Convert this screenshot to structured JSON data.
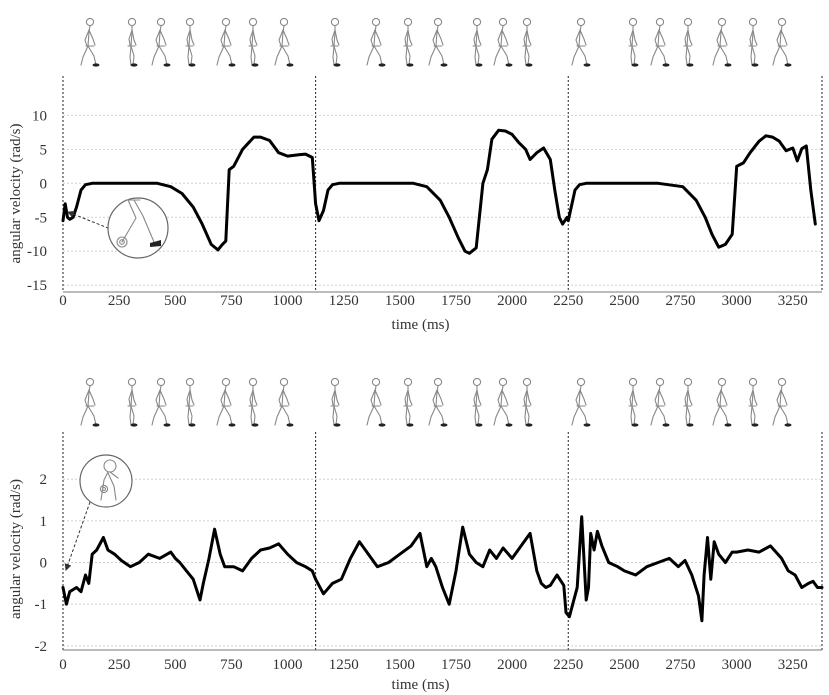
{
  "chart_data": [
    {
      "type": "line",
      "xlabel": "time (ms)",
      "ylabel": "angular velocity (rad/s)",
      "xlim": [
        0,
        3380
      ],
      "ylim": [
        -16,
        13
      ],
      "xticks": [
        0,
        250,
        500,
        750,
        1000,
        1250,
        1500,
        1750,
        2000,
        2250,
        2500,
        2750,
        3000,
        3250
      ],
      "yticks": [
        -15,
        -10,
        -5,
        0,
        5,
        10
      ],
      "gridlines_y": [
        -15,
        -10,
        -5,
        0,
        5,
        10
      ],
      "cycle_boundaries": [
        1125,
        2250
      ],
      "inset": "lower-left, shank (lower leg) sensor",
      "series": [
        {
          "x": [
            0,
            10,
            20,
            30,
            45,
            60,
            80,
            100,
            130,
            170,
            250,
            350,
            420,
            480,
            530,
            580,
            620,
            660,
            690,
            710,
            725,
            740,
            760,
            800,
            850,
            880,
            920,
            960,
            1000,
            1050,
            1080,
            1110,
            1125,
            1140,
            1160,
            1180,
            1200,
            1230,
            1270,
            1400,
            1500,
            1560,
            1620,
            1680,
            1720,
            1760,
            1790,
            1810,
            1840,
            1870,
            1890,
            1910,
            1940,
            1970,
            2000,
            2030,
            2060,
            2080,
            2110,
            2140,
            2170,
            2190,
            2210,
            2225,
            2245,
            2250,
            2260,
            2280,
            2300,
            2330,
            2400,
            2500,
            2650,
            2760,
            2820,
            2860,
            2890,
            2920,
            2950,
            2980,
            3000,
            3030,
            3060,
            3100,
            3130,
            3160,
            3190,
            3220,
            3250,
            3270,
            3290,
            3310,
            3330,
            3350
          ],
          "y": [
            -5.5,
            -3,
            -5,
            -5.3,
            -5,
            -3.5,
            -1,
            -0.2,
            0,
            0,
            0,
            0,
            0,
            -0.5,
            -1.5,
            -3.5,
            -6,
            -9,
            -9.8,
            -9,
            -8.5,
            2,
            2.5,
            5,
            6.8,
            6.8,
            6.3,
            4.5,
            4,
            4.2,
            4.3,
            3.8,
            -3,
            -5.5,
            -4,
            -1,
            -0.2,
            0,
            0,
            0,
            0,
            0,
            -0.5,
            -2.5,
            -5,
            -8,
            -10,
            -10.3,
            -9.5,
            0,
            2,
            6.5,
            7.8,
            7.7,
            7.2,
            6,
            5,
            3.5,
            4.5,
            5.2,
            3.5,
            -1,
            -5,
            -6,
            -5,
            -5.5,
            -4,
            -1,
            -0.2,
            0,
            0,
            0,
            0,
            -0.5,
            -2.5,
            -5,
            -7.5,
            -9.4,
            -9,
            -7.5,
            2.5,
            3,
            4.5,
            6.2,
            7,
            6.8,
            6.2,
            4.8,
            5.2,
            3.3,
            5.1,
            5.5,
            -1,
            -6
          ]
        }
      ]
    },
    {
      "type": "line",
      "xlabel": "time (ms)",
      "ylabel": "angular velocity (rad/s)",
      "xlim": [
        0,
        3380
      ],
      "ylim": [
        -2.1,
        2.75
      ],
      "xticks": [
        0,
        250,
        500,
        750,
        1000,
        1250,
        1500,
        1750,
        2000,
        2250,
        2500,
        2750,
        3000,
        3250
      ],
      "yticks": [
        -2,
        -1,
        0,
        1,
        2
      ],
      "gridlines_y": [
        -2,
        -1,
        0,
        1,
        2
      ],
      "cycle_boundaries": [
        1125,
        2250
      ],
      "inset": "upper-left, pelvis/lower-back sensor",
      "series": [
        {
          "x": [
            0,
            15,
            30,
            45,
            60,
            80,
            100,
            115,
            130,
            150,
            180,
            200,
            230,
            260,
            300,
            340,
            380,
            430,
            480,
            500,
            520,
            550,
            580,
            610,
            625,
            650,
            675,
            700,
            720,
            760,
            800,
            840,
            880,
            920,
            960,
            1000,
            1040,
            1080,
            1110,
            1125,
            1160,
            1200,
            1240,
            1280,
            1320,
            1360,
            1400,
            1450,
            1500,
            1550,
            1590,
            1620,
            1640,
            1660,
            1690,
            1720,
            1750,
            1780,
            1810,
            1840,
            1870,
            1900,
            1930,
            1960,
            2000,
            2040,
            2080,
            2110,
            2130,
            2150,
            2170,
            2200,
            2230,
            2240,
            2255,
            2270,
            2290,
            2310,
            2330,
            2340,
            2350,
            2365,
            2380,
            2400,
            2430,
            2470,
            2500,
            2550,
            2600,
            2650,
            2700,
            2740,
            2770,
            2800,
            2830,
            2845,
            2855,
            2870,
            2885,
            2900,
            2920,
            2950,
            2980,
            3000,
            3050,
            3100,
            3150,
            3200,
            3230,
            3260,
            3290,
            3320,
            3340,
            3360,
            3380
          ],
          "y": [
            -0.6,
            -1,
            -0.7,
            -0.65,
            -0.6,
            -0.7,
            -0.3,
            -0.5,
            0.2,
            0.3,
            0.6,
            0.3,
            0.2,
            0.05,
            -0.1,
            0,
            0.2,
            0.1,
            0.25,
            0.1,
            0,
            -0.2,
            -0.4,
            -0.9,
            -0.5,
            0.1,
            0.8,
            0.2,
            -0.1,
            -0.1,
            -0.2,
            0.1,
            0.3,
            0.35,
            0.45,
            0.2,
            0,
            -0.1,
            -0.2,
            -0.4,
            -0.75,
            -0.5,
            -0.4,
            0.1,
            0.5,
            0.2,
            -0.1,
            0,
            0.2,
            0.4,
            0.7,
            -0.1,
            0.1,
            -0.1,
            -0.6,
            -1,
            -0.2,
            0.85,
            0.2,
            0,
            -0.1,
            0.3,
            0.1,
            0.35,
            0.1,
            0.4,
            0.7,
            -0.2,
            -0.5,
            -0.6,
            -0.55,
            -0.3,
            -0.55,
            -1.2,
            -1.3,
            -1,
            -0.6,
            1.1,
            -0.9,
            -0.6,
            0.7,
            0.3,
            0.75,
            0.4,
            0,
            -0.1,
            -0.2,
            -0.3,
            -0.1,
            0,
            0.1,
            -0.1,
            0.05,
            -0.3,
            -0.8,
            -1.4,
            -0.3,
            0.6,
            -0.4,
            0.5,
            0.2,
            0,
            0.25,
            0.25,
            0.3,
            0.25,
            0.4,
            0.1,
            -0.2,
            -0.3,
            -0.6,
            -0.5,
            -0.45,
            -0.6,
            -0.6
          ]
        }
      ]
    }
  ]
}
